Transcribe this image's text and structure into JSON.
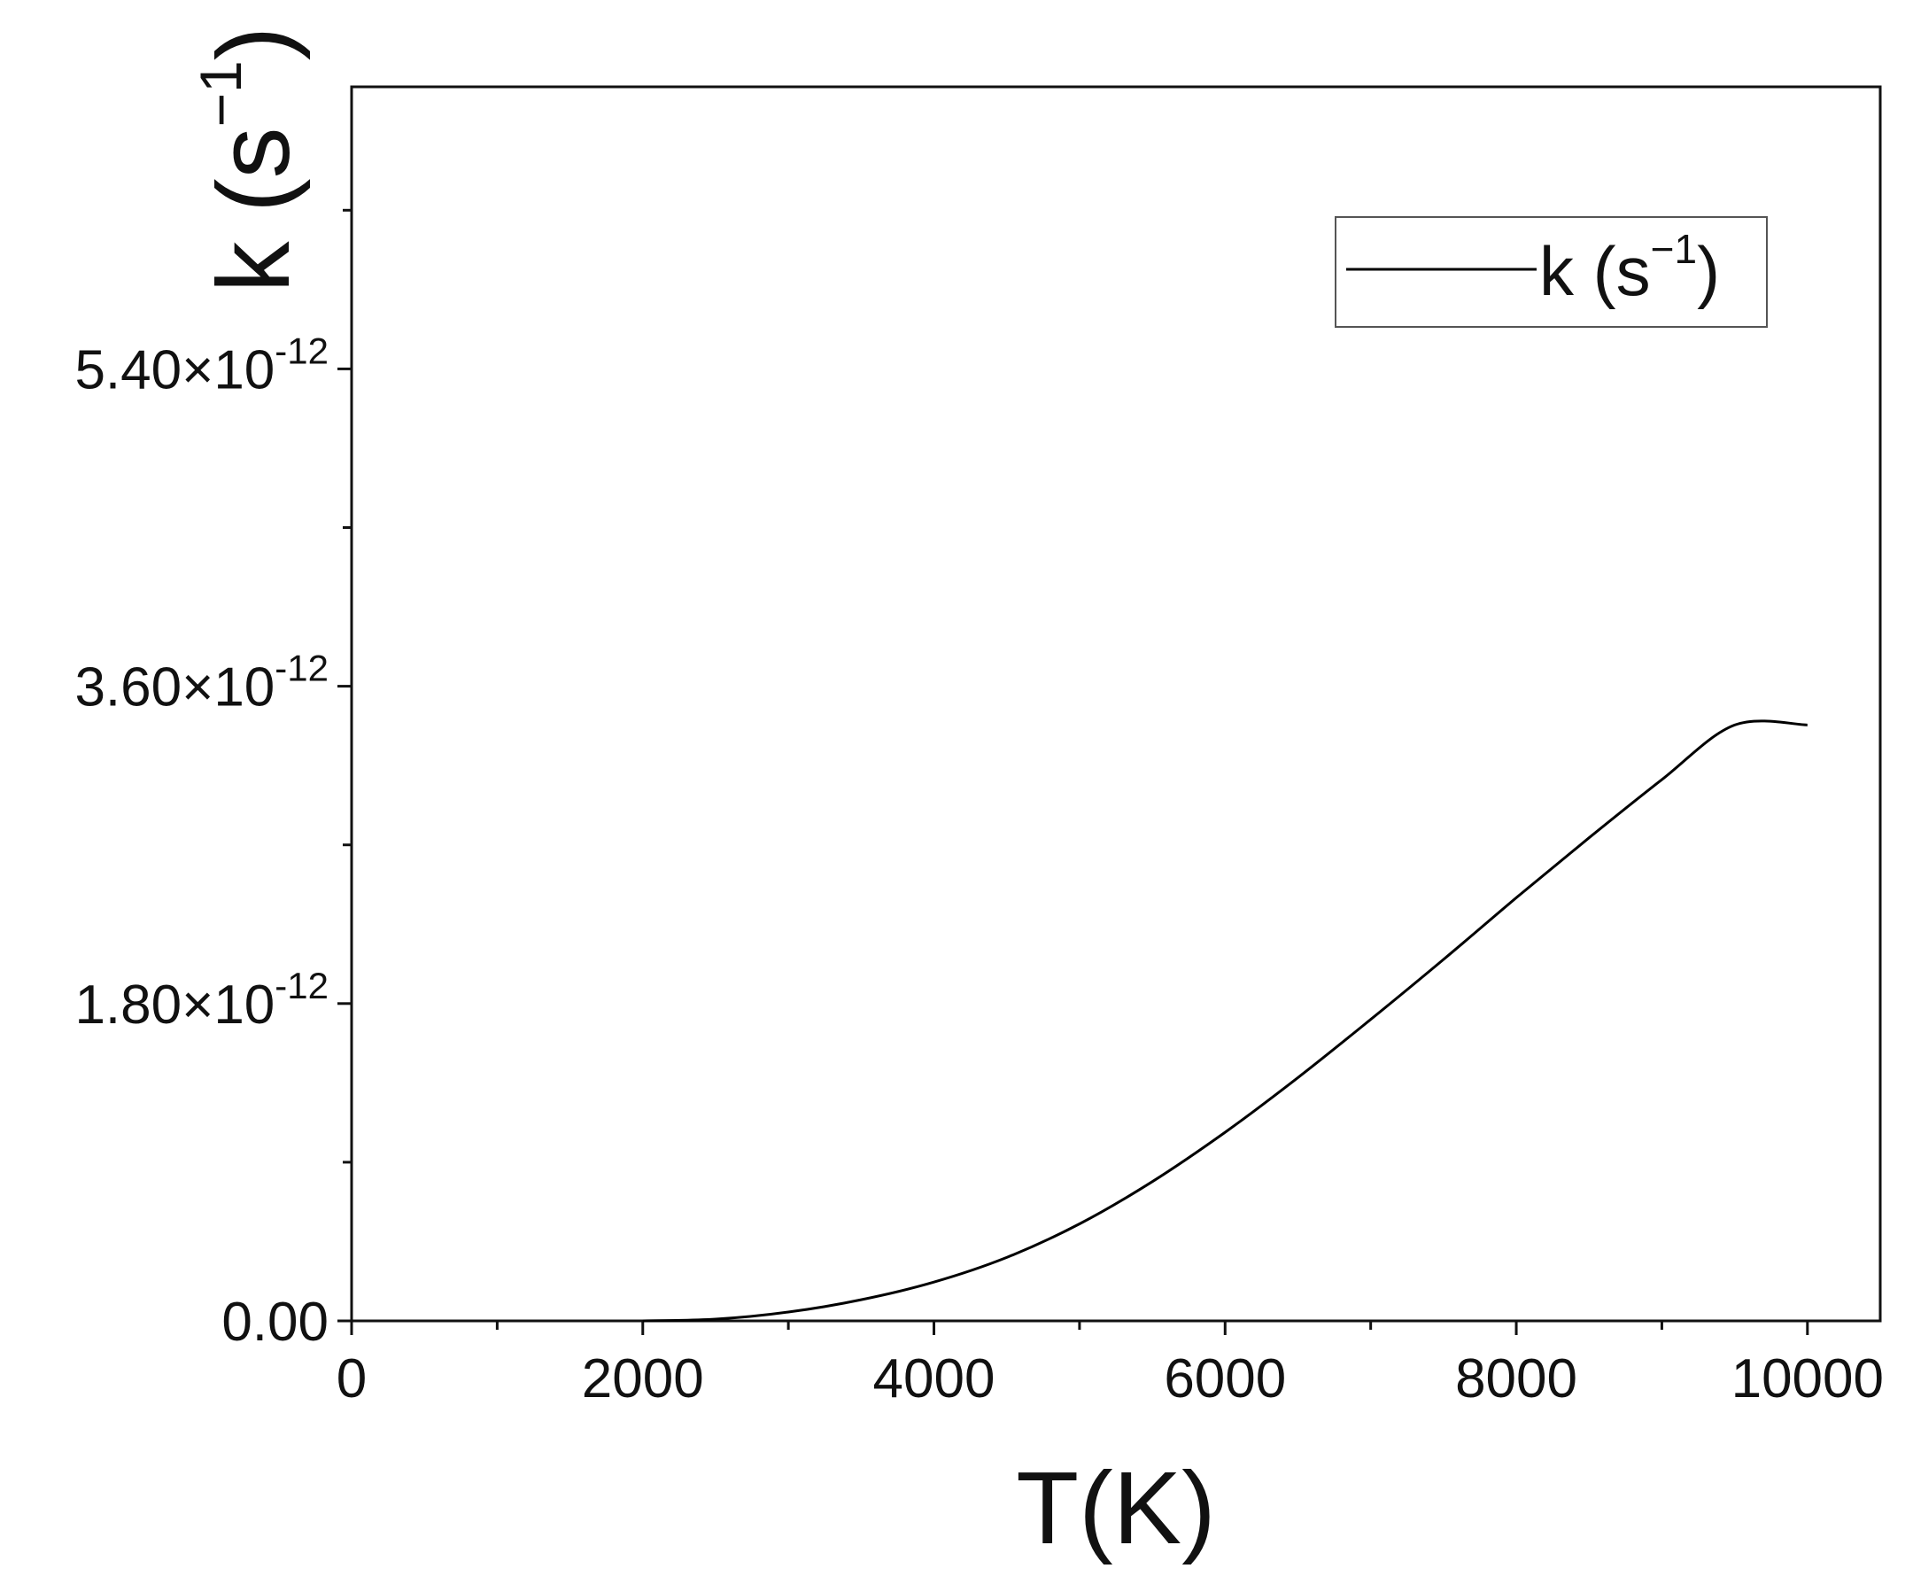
{
  "chart_data": {
    "type": "line",
    "title": "",
    "xlabel": "T(K)",
    "ylabel": {
      "base": "k (s",
      "sup": "−1",
      "close": ")"
    },
    "xlim": [
      0,
      10500
    ],
    "ylim": [
      0,
      7e-12
    ],
    "x_ticks": [
      0,
      2000,
      4000,
      6000,
      8000,
      10000
    ],
    "x_tick_labels": [
      "0",
      "2000",
      "4000",
      "6000",
      "8000",
      "10000"
    ],
    "x_minor_ticks": [
      1000,
      3000,
      5000,
      7000,
      9000
    ],
    "y_ticks": [
      {
        "value": 0,
        "mantissa": "0.00",
        "exp": ""
      },
      {
        "value": 1.8e-12,
        "mantissa": "1.80×10",
        "exp": "-12"
      },
      {
        "value": 3.6e-12,
        "mantissa": "3.60×10",
        "exp": "-12"
      },
      {
        "value": 5.4e-12,
        "mantissa": "5.40×10",
        "exp": "-12"
      }
    ],
    "y_minor_ticks": [
      9e-13,
      2.7e-12,
      4.5e-12,
      6.3e-12
    ],
    "grid": false,
    "legend": {
      "position": "top-right",
      "label": {
        "base": "k (s",
        "sup": "−1",
        "close": ")"
      }
    },
    "series": [
      {
        "name": "k (s−1)",
        "color": "#000000",
        "x": [
          2000,
          2500,
          3000,
          3500,
          4000,
          4500,
          5000,
          5500,
          6000,
          6500,
          7000,
          7500,
          8000,
          8500,
          9000,
          9500,
          10000
        ],
        "y": [
          0,
          1e-14,
          5e-14,
          1.2e-13,
          2.2e-13,
          3.6e-13,
          5.5e-13,
          7.9e-13,
          1.07e-12,
          1.38e-12,
          1.71e-12,
          2.05e-12,
          2.4e-12,
          2.74e-12,
          3.07e-12,
          3.38e-12,
          3.38e-12
        ]
      }
    ]
  }
}
